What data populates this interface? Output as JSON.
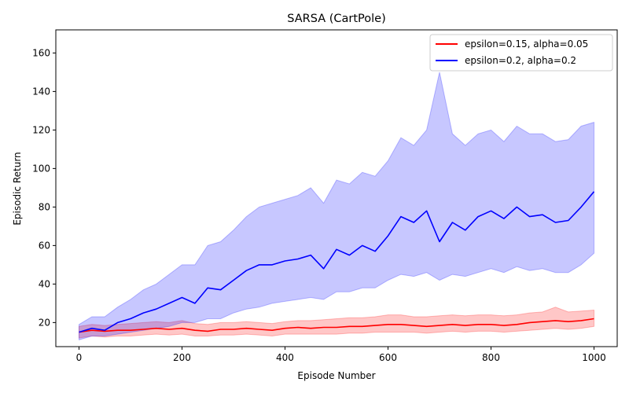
{
  "chart_data": {
    "type": "line",
    "title": "SARSA (CartPole)",
    "xlabel": "Episode Number",
    "ylabel": "Episodic Return",
    "xlim": [
      -45,
      1045
    ],
    "ylim": [
      7.5,
      172
    ],
    "xticks": [
      0,
      200,
      400,
      600,
      800,
      1000
    ],
    "yticks": [
      20,
      40,
      60,
      80,
      100,
      120,
      140,
      160
    ],
    "grid": false,
    "legend_position": "top-right",
    "series": [
      {
        "name": "epsilon=0.15, alpha=0.05",
        "color": "#ff0000",
        "band_color": "#ff0000",
        "x": [
          0,
          25,
          50,
          75,
          100,
          125,
          150,
          175,
          200,
          225,
          250,
          275,
          300,
          325,
          350,
          375,
          400,
          425,
          450,
          475,
          500,
          525,
          550,
          575,
          600,
          625,
          650,
          675,
          700,
          725,
          750,
          775,
          800,
          825,
          850,
          875,
          900,
          925,
          950,
          975,
          1000
        ],
        "mean": [
          15,
          16,
          15.5,
          16,
          16,
          16.5,
          17,
          16.5,
          17,
          16,
          15.5,
          16.5,
          16.5,
          17,
          16.5,
          16,
          17,
          17.5,
          17,
          17.5,
          17.5,
          18,
          18,
          18.5,
          19,
          19,
          18.5,
          18,
          18.5,
          19,
          18.5,
          19,
          19,
          18.5,
          19,
          20,
          20.5,
          21,
          20.5,
          21,
          22
        ],
        "lower": [
          12,
          13,
          12.5,
          13,
          13,
          13.5,
          14,
          13.5,
          14,
          13,
          13,
          13.5,
          13.5,
          14,
          13.5,
          13,
          14,
          14,
          14,
          14,
          14,
          14.5,
          14.5,
          15,
          15,
          15,
          15,
          14.5,
          15,
          15.5,
          15,
          15.5,
          15.5,
          15,
          15.5,
          16,
          16.5,
          17,
          16.5,
          17,
          18
        ],
        "upper": [
          18,
          19,
          18.5,
          19,
          19.5,
          20,
          20.5,
          20,
          21,
          19.5,
          19,
          20,
          20,
          20.5,
          20,
          19.5,
          20.5,
          21,
          21,
          21.5,
          22,
          22.5,
          22.5,
          23,
          24,
          24,
          23,
          23,
          23.5,
          24,
          23.5,
          24,
          24,
          23.5,
          24,
          25,
          25.5,
          28,
          25.5,
          26,
          26.5
        ]
      },
      {
        "name": "epsilon=0.2, alpha=0.2",
        "color": "#0000ff",
        "band_color": "#0000ff",
        "x": [
          0,
          25,
          50,
          75,
          100,
          125,
          150,
          175,
          200,
          225,
          250,
          275,
          300,
          325,
          350,
          375,
          400,
          425,
          450,
          475,
          500,
          525,
          550,
          575,
          600,
          625,
          650,
          675,
          700,
          725,
          750,
          775,
          800,
          825,
          850,
          875,
          900,
          925,
          950,
          975,
          1000
        ],
        "mean": [
          15,
          17,
          16,
          20,
          22,
          25,
          27,
          30,
          33,
          30,
          38,
          37,
          42,
          47,
          50,
          50,
          52,
          53,
          55,
          48,
          58,
          55,
          60,
          57,
          65,
          75,
          72,
          78,
          62,
          72,
          68,
          75,
          78,
          74,
          80,
          75,
          76,
          72,
          73,
          80,
          88
        ],
        "lower": [
          11,
          13,
          13,
          14,
          15,
          16,
          17,
          18,
          20,
          20,
          22,
          22,
          25,
          27,
          28,
          30,
          31,
          32,
          33,
          32,
          36,
          36,
          38,
          38,
          42,
          45,
          44,
          46,
          42,
          45,
          44,
          46,
          48,
          46,
          49,
          47,
          48,
          46,
          46,
          50,
          56
        ],
        "upper": [
          19,
          23,
          23,
          28,
          32,
          37,
          40,
          45,
          50,
          50,
          60,
          62,
          68,
          75,
          80,
          82,
          84,
          86,
          90,
          82,
          94,
          92,
          98,
          96,
          104,
          116,
          112,
          120,
          150,
          118,
          112,
          118,
          120,
          114,
          122,
          118,
          118,
          114,
          115,
          122,
          124
        ]
      }
    ]
  }
}
